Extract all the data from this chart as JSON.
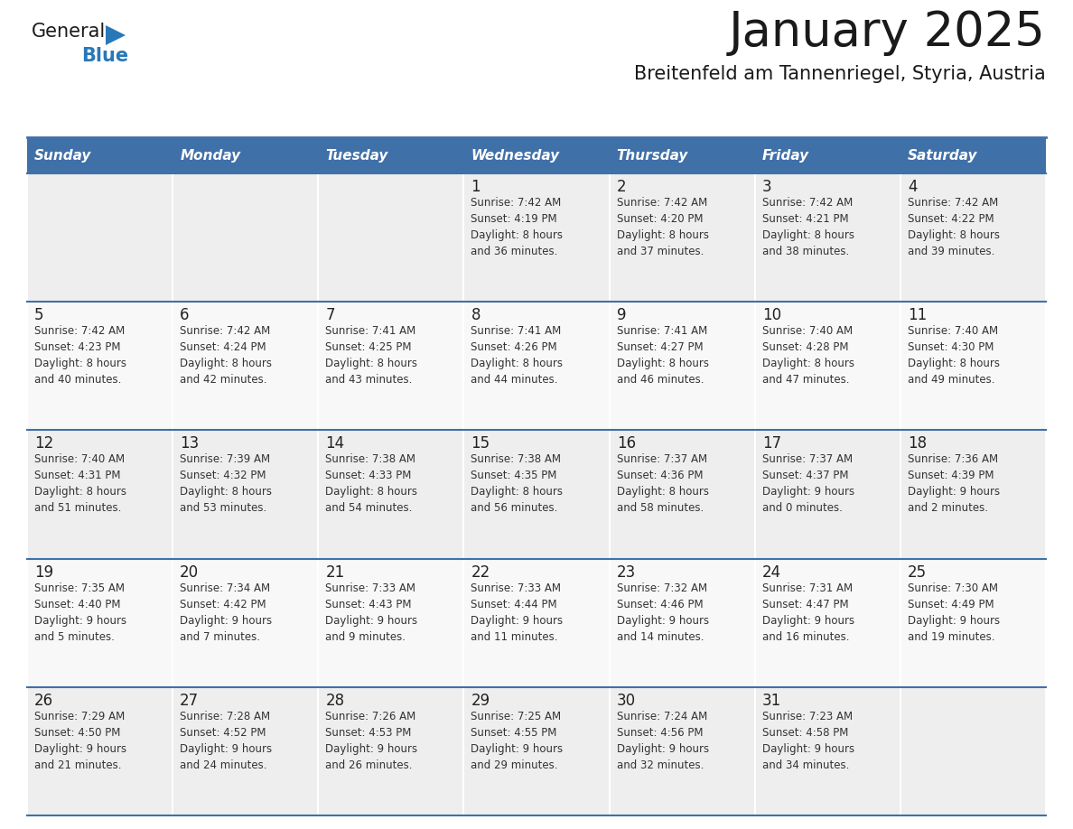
{
  "title": "January 2025",
  "subtitle": "Breitenfeld am Tannenriegel, Styria, Austria",
  "days_of_week": [
    "Sunday",
    "Monday",
    "Tuesday",
    "Wednesday",
    "Thursday",
    "Friday",
    "Saturday"
  ],
  "header_bg": "#4070A8",
  "header_text": "#FFFFFF",
  "cell_bg_odd": "#EEEEEE",
  "cell_bg_even": "#F8F8F8",
  "grid_line_color": "#4070A8",
  "title_color": "#1A1A1A",
  "subtitle_color": "#1A1A1A",
  "day_num_color": "#222222",
  "cell_text_color": "#333333",
  "logo_general_color": "#1A1A1A",
  "logo_blue_color": "#2878B8",
  "calendar_data": [
    [
      {
        "day": null,
        "info": null
      },
      {
        "day": null,
        "info": null
      },
      {
        "day": null,
        "info": null
      },
      {
        "day": 1,
        "info": "Sunrise: 7:42 AM\nSunset: 4:19 PM\nDaylight: 8 hours\nand 36 minutes."
      },
      {
        "day": 2,
        "info": "Sunrise: 7:42 AM\nSunset: 4:20 PM\nDaylight: 8 hours\nand 37 minutes."
      },
      {
        "day": 3,
        "info": "Sunrise: 7:42 AM\nSunset: 4:21 PM\nDaylight: 8 hours\nand 38 minutes."
      },
      {
        "day": 4,
        "info": "Sunrise: 7:42 AM\nSunset: 4:22 PM\nDaylight: 8 hours\nand 39 minutes."
      }
    ],
    [
      {
        "day": 5,
        "info": "Sunrise: 7:42 AM\nSunset: 4:23 PM\nDaylight: 8 hours\nand 40 minutes."
      },
      {
        "day": 6,
        "info": "Sunrise: 7:42 AM\nSunset: 4:24 PM\nDaylight: 8 hours\nand 42 minutes."
      },
      {
        "day": 7,
        "info": "Sunrise: 7:41 AM\nSunset: 4:25 PM\nDaylight: 8 hours\nand 43 minutes."
      },
      {
        "day": 8,
        "info": "Sunrise: 7:41 AM\nSunset: 4:26 PM\nDaylight: 8 hours\nand 44 minutes."
      },
      {
        "day": 9,
        "info": "Sunrise: 7:41 AM\nSunset: 4:27 PM\nDaylight: 8 hours\nand 46 minutes."
      },
      {
        "day": 10,
        "info": "Sunrise: 7:40 AM\nSunset: 4:28 PM\nDaylight: 8 hours\nand 47 minutes."
      },
      {
        "day": 11,
        "info": "Sunrise: 7:40 AM\nSunset: 4:30 PM\nDaylight: 8 hours\nand 49 minutes."
      }
    ],
    [
      {
        "day": 12,
        "info": "Sunrise: 7:40 AM\nSunset: 4:31 PM\nDaylight: 8 hours\nand 51 minutes."
      },
      {
        "day": 13,
        "info": "Sunrise: 7:39 AM\nSunset: 4:32 PM\nDaylight: 8 hours\nand 53 minutes."
      },
      {
        "day": 14,
        "info": "Sunrise: 7:38 AM\nSunset: 4:33 PM\nDaylight: 8 hours\nand 54 minutes."
      },
      {
        "day": 15,
        "info": "Sunrise: 7:38 AM\nSunset: 4:35 PM\nDaylight: 8 hours\nand 56 minutes."
      },
      {
        "day": 16,
        "info": "Sunrise: 7:37 AM\nSunset: 4:36 PM\nDaylight: 8 hours\nand 58 minutes."
      },
      {
        "day": 17,
        "info": "Sunrise: 7:37 AM\nSunset: 4:37 PM\nDaylight: 9 hours\nand 0 minutes."
      },
      {
        "day": 18,
        "info": "Sunrise: 7:36 AM\nSunset: 4:39 PM\nDaylight: 9 hours\nand 2 minutes."
      }
    ],
    [
      {
        "day": 19,
        "info": "Sunrise: 7:35 AM\nSunset: 4:40 PM\nDaylight: 9 hours\nand 5 minutes."
      },
      {
        "day": 20,
        "info": "Sunrise: 7:34 AM\nSunset: 4:42 PM\nDaylight: 9 hours\nand 7 minutes."
      },
      {
        "day": 21,
        "info": "Sunrise: 7:33 AM\nSunset: 4:43 PM\nDaylight: 9 hours\nand 9 minutes."
      },
      {
        "day": 22,
        "info": "Sunrise: 7:33 AM\nSunset: 4:44 PM\nDaylight: 9 hours\nand 11 minutes."
      },
      {
        "day": 23,
        "info": "Sunrise: 7:32 AM\nSunset: 4:46 PM\nDaylight: 9 hours\nand 14 minutes."
      },
      {
        "day": 24,
        "info": "Sunrise: 7:31 AM\nSunset: 4:47 PM\nDaylight: 9 hours\nand 16 minutes."
      },
      {
        "day": 25,
        "info": "Sunrise: 7:30 AM\nSunset: 4:49 PM\nDaylight: 9 hours\nand 19 minutes."
      }
    ],
    [
      {
        "day": 26,
        "info": "Sunrise: 7:29 AM\nSunset: 4:50 PM\nDaylight: 9 hours\nand 21 minutes."
      },
      {
        "day": 27,
        "info": "Sunrise: 7:28 AM\nSunset: 4:52 PM\nDaylight: 9 hours\nand 24 minutes."
      },
      {
        "day": 28,
        "info": "Sunrise: 7:26 AM\nSunset: 4:53 PM\nDaylight: 9 hours\nand 26 minutes."
      },
      {
        "day": 29,
        "info": "Sunrise: 7:25 AM\nSunset: 4:55 PM\nDaylight: 9 hours\nand 29 minutes."
      },
      {
        "day": 30,
        "info": "Sunrise: 7:24 AM\nSunset: 4:56 PM\nDaylight: 9 hours\nand 32 minutes."
      },
      {
        "day": 31,
        "info": "Sunrise: 7:23 AM\nSunset: 4:58 PM\nDaylight: 9 hours\nand 34 minutes."
      },
      {
        "day": null,
        "info": null
      }
    ]
  ]
}
